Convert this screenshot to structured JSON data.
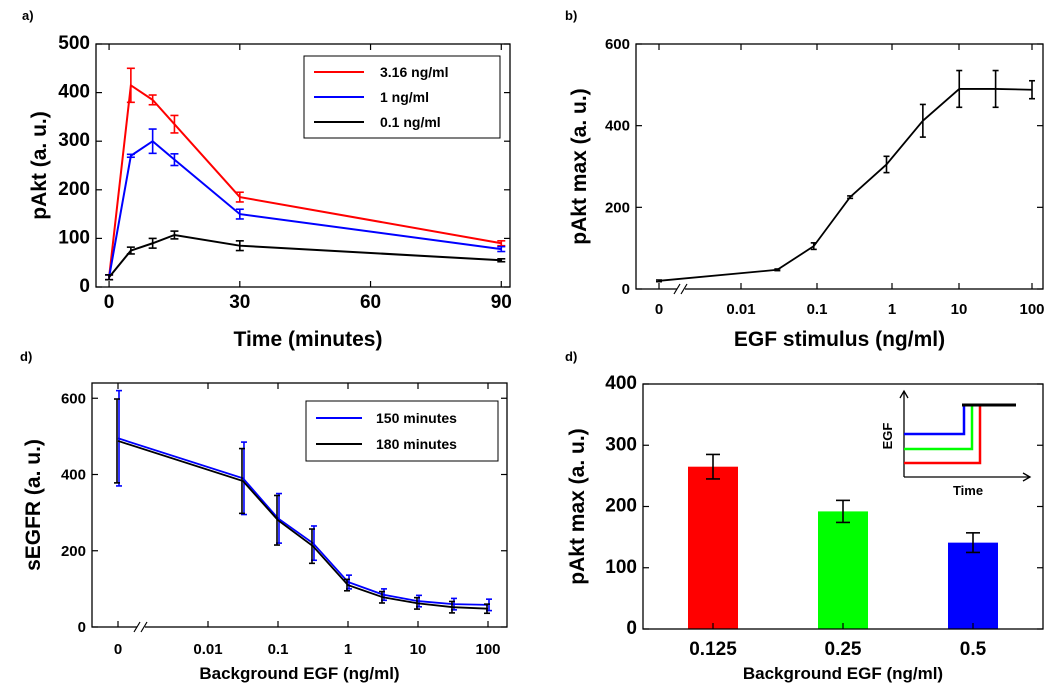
{
  "chart_data": [
    {
      "panel_label": "a)",
      "type": "line",
      "xlabel": "Time (minutes)",
      "ylabel": "pAkt (a. u.)",
      "xlim": [
        -3,
        92
      ],
      "ylim": [
        0,
        500
      ],
      "xticks": [
        0,
        30,
        60,
        90
      ],
      "xtick_labels": [
        "0",
        "30",
        "60",
        "90"
      ],
      "yticks": [
        0,
        100,
        200,
        300,
        400,
        500
      ],
      "ytick_labels": [
        "0",
        "100",
        "200",
        "300",
        "400",
        "500"
      ],
      "legend_placement": "top-right",
      "series": [
        {
          "name": "3.16 ng/ml",
          "color": "#ff0000",
          "x": [
            0,
            5,
            10,
            15,
            30,
            90
          ],
          "y": [
            20,
            415,
            385,
            335,
            185,
            90
          ],
          "err": [
            5,
            35,
            10,
            18,
            10,
            5
          ]
        },
        {
          "name": "1 ng/ml",
          "color": "#0000ff",
          "x": [
            0,
            5,
            10,
            15,
            30,
            90
          ],
          "y": [
            20,
            270,
            300,
            262,
            150,
            78
          ],
          "err": [
            5,
            3,
            25,
            12,
            10,
            5
          ]
        },
        {
          "name": "0.1 ng/ml",
          "color": "#000000",
          "x": [
            0,
            5,
            10,
            15,
            30,
            90
          ],
          "y": [
            20,
            75,
            90,
            107,
            85,
            55
          ],
          "err": [
            5,
            7,
            10,
            8,
            10,
            3
          ]
        }
      ]
    },
    {
      "panel_label": "b)",
      "type": "line",
      "xlabel": "EGF stimulus (ng/ml)",
      "ylabel": "pAkt max (a. u.)",
      "xscale": "log, with 0 on a broken axis",
      "ylim": [
        0,
        600
      ],
      "xtick_labels": [
        "0",
        "0.01",
        "0.1",
        "1",
        "10",
        "100"
      ],
      "yticks": [
        0,
        200,
        400,
        600
      ],
      "ytick_labels": [
        "0",
        "200",
        "400",
        "600"
      ],
      "series": [
        {
          "color": "#000000",
          "x": [
            0,
            0.0316,
            0.1,
            0.316,
            1,
            3.16,
            10,
            31.6,
            100
          ],
          "y": [
            20,
            47,
            105,
            225,
            305,
            412,
            490,
            490,
            488
          ],
          "err": [
            2,
            2,
            8,
            3,
            20,
            40,
            45,
            45,
            22
          ]
        }
      ]
    },
    {
      "panel_label": "d)",
      "type": "line",
      "xlabel": "Background EGF (ng/ml)",
      "ylabel": "sEGFR (a. u.)",
      "xscale": "log, with 0 on a broken axis",
      "ylim": [
        0,
        640
      ],
      "xtick_labels": [
        "0",
        "0.01",
        "0.1",
        "1",
        "10",
        "100"
      ],
      "yticks": [
        0,
        200,
        400,
        600
      ],
      "ytick_labels": [
        "0",
        "200",
        "400",
        "600"
      ],
      "legend_placement": "top-right",
      "series": [
        {
          "name": "150 minutes",
          "color": "#0000ff",
          "x": [
            0,
            0.0316,
            0.1,
            0.316,
            1,
            3.16,
            10,
            31.6,
            100
          ],
          "y": [
            495,
            390,
            285,
            220,
            118,
            85,
            68,
            60,
            58
          ],
          "err": [
            125,
            95,
            65,
            45,
            18,
            15,
            15,
            15,
            15
          ]
        },
        {
          "name": "180 minutes",
          "color": "#000000",
          "x": [
            0,
            0.0316,
            0.1,
            0.316,
            1,
            3.16,
            10,
            31.6,
            100
          ],
          "y": [
            488,
            383,
            280,
            212,
            110,
            78,
            62,
            52,
            48
          ],
          "err": [
            110,
            85,
            65,
            45,
            15,
            15,
            15,
            15,
            12
          ]
        }
      ]
    },
    {
      "panel_label": "d)",
      "type": "bar",
      "xlabel": "Background EGF (ng/ml)",
      "ylabel": "pAkt max (a. u.)",
      "categories": [
        "0.125",
        "0.25",
        "0.5"
      ],
      "values": [
        265,
        192,
        141
      ],
      "errors": [
        20,
        18,
        16
      ],
      "colors": [
        "#ff0000",
        "#00ff00",
        "#0000ff"
      ],
      "ylim": [
        0,
        400
      ],
      "yticks": [
        0,
        100,
        200,
        300,
        400
      ],
      "ytick_labels": [
        "0",
        "100",
        "200",
        "300",
        "400"
      ],
      "inset": {
        "xlabel": "Time",
        "ylabel": "EGF",
        "colors": [
          "#0000ff",
          "#00ff00",
          "#ff0000",
          "#000000"
        ],
        "placement": "top-right"
      }
    }
  ]
}
